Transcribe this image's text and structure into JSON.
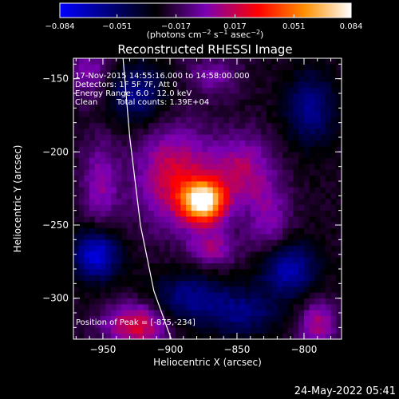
{
  "chart_data": {
    "type": "heatmap",
    "title": "Reconstructed RHESSI Image",
    "xlabel": "Heliocentric X (arcsec)",
    "ylabel": "Heliocentric Y (arcsec)",
    "xlim": [
      -972,
      -772
    ],
    "ylim": [
      -328,
      -136
    ],
    "x_ticks": [
      -950,
      -900,
      -850,
      -800
    ],
    "x_tick_labels": [
      "−950",
      "−900",
      "−850",
      "−800"
    ],
    "y_ticks": [
      -150,
      -200,
      -250,
      -300
    ],
    "y_tick_labels": [
      "−150",
      "−200",
      "−250",
      "−300"
    ],
    "colorbar": {
      "range": [
        -0.084,
        0.084
      ],
      "ticks": [
        -0.084,
        -0.051,
        -0.017,
        0.017,
        0.051,
        0.084
      ],
      "tick_labels": [
        "−0.084",
        "−0.051",
        "−0.017",
        "0.017",
        "0.051",
        "0.084"
      ],
      "label_main": "(photons cm",
      "label_exp1": "−2",
      "label_mid": " s",
      "label_exp2": "−1",
      "label_end": " asec",
      "label_exp3": "−2",
      "label_close": ")",
      "colors": [
        "#0000ff",
        "#000000",
        "#7a00b4",
        "#ff0000",
        "#ff9000",
        "#ffffff"
      ]
    },
    "peak": [
      -875,
      -234
    ],
    "blobs": [
      {
        "x": -875,
        "y": -234,
        "sx": 11,
        "sy": 10,
        "amp": 0.1
      },
      {
        "x": -897,
        "y": -217,
        "sx": 20,
        "sy": 24,
        "amp": 0.045
      },
      {
        "x": -847,
        "y": -212,
        "sx": 16,
        "sy": 17,
        "amp": 0.035
      },
      {
        "x": -868,
        "y": -266,
        "sx": 13,
        "sy": 9,
        "amp": 0.03
      },
      {
        "x": -826,
        "y": -248,
        "sx": 12,
        "sy": 20,
        "amp": 0.025
      },
      {
        "x": -925,
        "y": -318,
        "sx": 17,
        "sy": 11,
        "amp": 0.048
      },
      {
        "x": -790,
        "y": -318,
        "sx": 10,
        "sy": 12,
        "amp": 0.035
      },
      {
        "x": -960,
        "y": -145,
        "sx": 11,
        "sy": 14,
        "amp": 0.025
      },
      {
        "x": -952,
        "y": -223,
        "sx": 10,
        "sy": 22,
        "amp": 0.028
      },
      {
        "x": -868,
        "y": -148,
        "sx": 14,
        "sy": 9,
        "amp": 0.022
      },
      {
        "x": -955,
        "y": -270,
        "sx": 12,
        "sy": 12,
        "amp": -0.055
      },
      {
        "x": -925,
        "y": -160,
        "sx": 15,
        "sy": 14,
        "amp": -0.035
      },
      {
        "x": -795,
        "y": -170,
        "sx": 13,
        "sy": 17,
        "amp": -0.035
      },
      {
        "x": -812,
        "y": -280,
        "sx": 15,
        "sy": 13,
        "amp": -0.045
      },
      {
        "x": -886,
        "y": -300,
        "sx": 20,
        "sy": 12,
        "amp": -0.035
      },
      {
        "x": -845,
        "y": -310,
        "sx": 18,
        "sy": 11,
        "amp": -0.03
      }
    ],
    "base_level": -0.024,
    "limb": [
      [
        -935,
        -136
      ],
      [
        -930,
        -190
      ],
      [
        -922,
        -250
      ],
      [
        -912,
        -295
      ],
      [
        -899,
        -328
      ]
    ]
  },
  "annotations": {
    "time_range": "17-Nov-2015 14:55:16.000 to 14:58:00.000",
    "detectors": "Detectors: 1F 5F 7F, Att 0",
    "energy": "Energy Range: 6.0 - 12.0 keV",
    "clean": "Clean",
    "counts": "Total counts: 1.39E+04",
    "peak_label": "Position of Peak = [-875,-234]"
  },
  "footer": {
    "date": "24-May-2022 05:41"
  }
}
